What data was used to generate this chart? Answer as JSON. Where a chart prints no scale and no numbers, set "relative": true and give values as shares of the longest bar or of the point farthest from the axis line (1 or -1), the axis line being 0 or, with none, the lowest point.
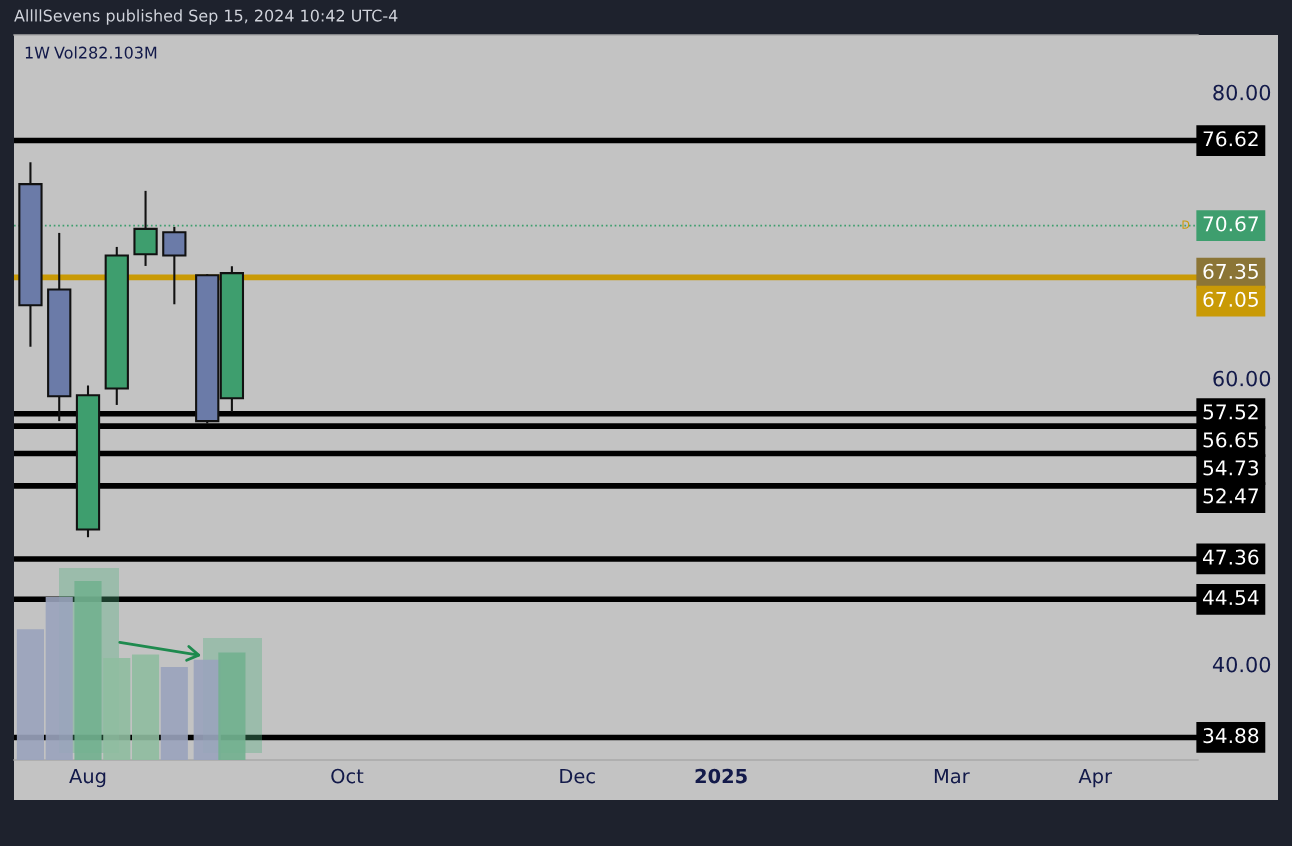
{
  "chart_data": [
    {
      "type": "candlestick",
      "title": "1W",
      "annotations": [
        "AllllSevens published Sep 15, 2024 10:42 UTC-4",
        {
          "text": "D",
          "x": "2025-04-29",
          "y": 70.67
        },
        "67.35"
      ],
      "x": [
        "2024-07-22",
        "2024-07-29",
        "2024-08-05",
        "2024-08-12",
        "2024-08-19",
        "2024-08-26",
        "2024-09-03",
        "2024-09-09"
      ],
      "ohlc": [
        [
          73.57,
          75.1,
          62.2,
          65.1
        ],
        [
          66.2,
          70.16,
          57.0,
          58.74
        ],
        [
          49.42,
          59.49,
          48.88,
          58.81
        ],
        [
          59.28,
          69.18,
          58.13,
          68.58
        ],
        [
          68.67,
          73.1,
          67.85,
          70.44
        ],
        [
          70.21,
          70.58,
          65.17,
          68.58
        ],
        [
          67.2,
          67.27,
          56.83,
          57.0
        ],
        [
          58.6,
          67.83,
          57.64,
          67.35
        ]
      ],
      "colors": [
        "#6b7ba8",
        "#6b7ba8",
        "#3e9e6e",
        "#3e9e6e",
        "#3e9e6e",
        "#6b7ba8",
        "#6b7ba8",
        "#3e9e6e"
      ],
      "xlim": [
        "2024-07-18",
        "2025-05-02"
      ],
      "xticks": [
        {
          "value": "2024-08-05",
          "label": "Aug"
        },
        {
          "value": "2024-10-07",
          "label": "Oct"
        },
        {
          "value": "2024-12-02",
          "label": "Dec"
        },
        {
          "value": "2025-01-06",
          "label": "2025"
        },
        {
          "value": "2025-03-03",
          "label": "Mar"
        },
        {
          "value": "2025-04-07",
          "label": "Apr"
        }
      ],
      "ylim": [
        33.3,
        84.0
      ],
      "yticks": [
        {
          "value": 40,
          "label": "40.00"
        },
        {
          "value": 60,
          "label": "60.00"
        },
        {
          "value": 80,
          "label": "80.00"
        }
      ],
      "ref_lines": [
        {
          "axis": "y",
          "value": 76.62,
          "label": "76.62",
          "color": "#000000",
          "line_style": "solid"
        },
        {
          "axis": "y",
          "value": 70.67,
          "label": "70.67",
          "color": "#3e9e6e",
          "line_style": "dotted"
        },
        {
          "axis": "y",
          "value": 67.05,
          "label": "67.05",
          "color": "#c99a06",
          "line_style": "solid"
        },
        {
          "axis": "y",
          "value": 57.52,
          "label": "57.52",
          "color": "#000000",
          "line_style": "solid"
        },
        {
          "axis": "y",
          "value": 56.65,
          "label": "56.65",
          "color": "#000000",
          "line_style": "solid"
        },
        {
          "axis": "y",
          "value": 54.73,
          "label": "54.73",
          "color": "#000000",
          "line_style": "solid"
        },
        {
          "axis": "y",
          "value": 52.47,
          "label": "52.47",
          "color": "#000000",
          "line_style": "solid"
        },
        {
          "axis": "y",
          "value": 47.36,
          "label": "47.36",
          "color": "#000000",
          "line_style": "solid"
        },
        {
          "axis": "y",
          "value": 44.54,
          "label": "44.54",
          "color": "#000000",
          "line_style": "solid"
        },
        {
          "axis": "y",
          "value": 34.88,
          "label": "34.88",
          "color": "#000000",
          "line_style": "solid"
        }
      ],
      "grid": false,
      "legend": false
    },
    {
      "type": "bar",
      "title": "Vol282.103M",
      "relative": true,
      "x": [
        "2024-07-22",
        "2024-07-29",
        "2024-08-05",
        "2024-08-12",
        "2024-08-19",
        "2024-08-26",
        "2024-09-03",
        "2024-09-09"
      ],
      "values": [
        0.73,
        0.91,
        1,
        0.57,
        0.59,
        0.52,
        0.56,
        0.6
      ],
      "colors": [
        "#9aa3bd",
        "#9aa3bd",
        "#72b08f",
        "#8fbca0",
        "#8fbca0",
        "#9aa3bd",
        "#9aa3bd",
        "#72b08f"
      ],
      "xlim": [
        "2024-07-18",
        "2025-05-02"
      ]
    }
  ]
}
